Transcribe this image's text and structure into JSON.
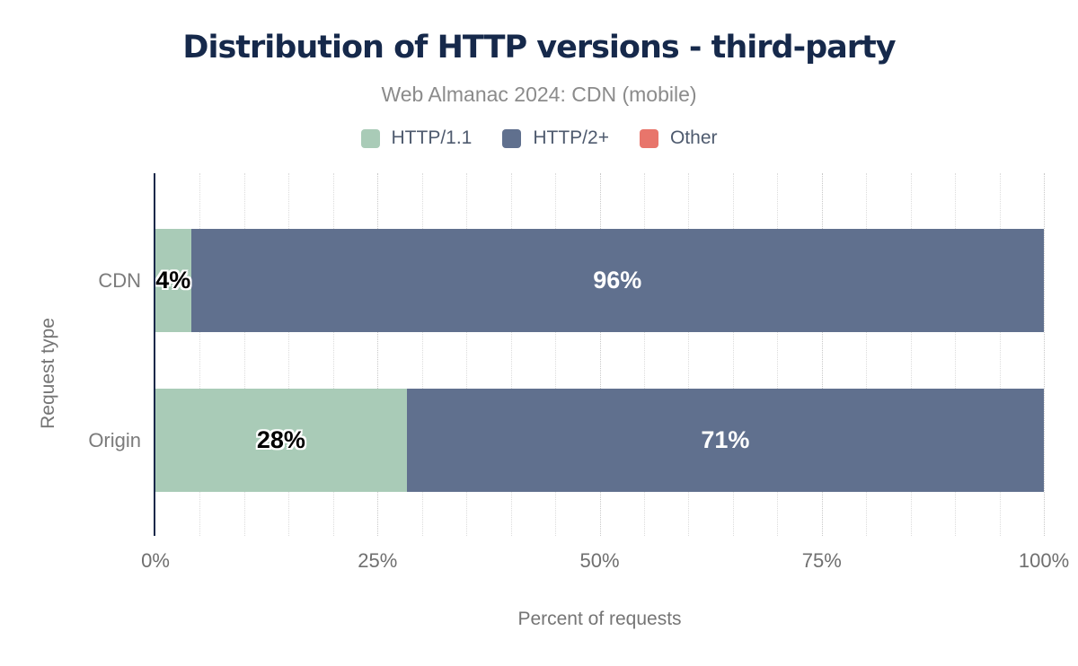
{
  "title": "Distribution of HTTP versions - third-party",
  "subtitle": "Web Almanac 2024: CDN (mobile)",
  "legend": [
    {
      "label": "HTTP/1.1",
      "color": "#a9cbb7"
    },
    {
      "label": "HTTP/2+",
      "color": "#60708e"
    },
    {
      "label": "Other",
      "color": "#e8756b"
    }
  ],
  "chart_data": {
    "type": "bar",
    "orientation": "horizontal-stacked",
    "title": "Distribution of HTTP versions - third-party",
    "subtitle": "Web Almanac 2024: CDN (mobile)",
    "categories": [
      "CDN",
      "Origin"
    ],
    "series": [
      {
        "name": "HTTP/1.1",
        "color": "#a9cbb7",
        "label_color": "#000000",
        "values": [
          4,
          28
        ]
      },
      {
        "name": "HTTP/2+",
        "color": "#60708e",
        "label_color": "#ffffff",
        "values": [
          96,
          71
        ]
      },
      {
        "name": "Other",
        "color": "#e8756b",
        "label_color": "#ffffff",
        "values": [
          null,
          null
        ]
      }
    ],
    "value_suffix": "%",
    "xlabel": "Percent of requests",
    "ylabel": "Request type",
    "x_ticks": [
      {
        "label": "0%",
        "value": 0
      },
      {
        "label": "25%",
        "value": 25
      },
      {
        "label": "50%",
        "value": 50
      },
      {
        "label": "75%",
        "value": 75
      },
      {
        "label": "100%",
        "value": 100
      }
    ],
    "xlim": [
      0,
      100
    ],
    "grid": {
      "minor_step": 5,
      "major_step": 25,
      "style": "dotted"
    },
    "legend_position": "top"
  },
  "colors": {
    "title": "#16294b",
    "subtitle": "#8b8b8b",
    "axis_line": "#16284a",
    "tick_text": "#6f6f6f",
    "category_text": "#7b7b7b",
    "grid_minor": "#dcdcdc",
    "grid_major": "#c8c8c8",
    "background": "#ffffff",
    "legend_text": "#4e5a6e"
  }
}
